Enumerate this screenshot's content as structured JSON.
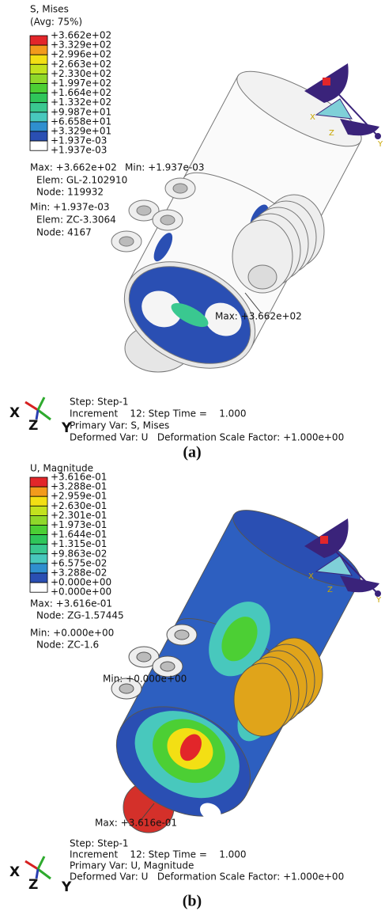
{
  "panels": [
    {
      "legend_title": "S, Mises",
      "legend_subtitle": "(Avg: 75%)",
      "legend_labels": [
        "+3.662e+02",
        "+3.329e+02",
        "+2.996e+02",
        "+2.663e+02",
        "+2.330e+02",
        "+1.997e+02",
        "+1.664e+02",
        "+1.332e+02",
        "+9.987e+01",
        "+6.658e+01",
        "+3.329e+01",
        "+1.937e-03"
      ],
      "legend_last_label": "+1.937e-03",
      "legend_colors": [
        "#e2262a",
        "#f29b1c",
        "#f3df14",
        "#c3e21e",
        "#8fd82a",
        "#4ccf34",
        "#2fc65a",
        "#3ac890",
        "#48c8bd",
        "#2f8fcf",
        "#2a4fb3",
        "#ffffff"
      ],
      "info": [
        "Max: +3.662e+02",
        "Elem: GL-2.102910",
        "Node: 119932",
        "Min: +1.937e-03",
        "Elem: ZC-3.3064",
        "Node: 4167"
      ],
      "model_labels": [
        "Min: +1.937e-03",
        "Max: +3.662e+02"
      ],
      "orientation_labels": [
        "X",
        "Z",
        "Y"
      ],
      "triad_labels": [
        "X",
        "Z",
        "Y"
      ],
      "step_info": [
        "Step: Step-1",
        "Increment    12: Step Time =    1.000",
        "Primary Var: S, Mises",
        "Deformed Var: U   Deformation Scale Factor: +1.000e+00"
      ],
      "caption": "(a)"
    },
    {
      "legend_title": "U, Magnitude",
      "legend_labels": [
        "+3.616e-01",
        "+3.288e-01",
        "+2.959e-01",
        "+2.630e-01",
        "+2.301e-01",
        "+1.973e-01",
        "+1.644e-01",
        "+1.315e-01",
        "+9.863e-02",
        "+6.575e-02",
        "+3.288e-02",
        "+0.000e+00"
      ],
      "legend_last_label": "+0.000e+00",
      "legend_colors": [
        "#e2262a",
        "#f29b1c",
        "#f3df14",
        "#c3e21e",
        "#8fd82a",
        "#4ccf34",
        "#2fc65a",
        "#3ac890",
        "#48c8bd",
        "#2f8fcf",
        "#2a4fb3",
        "#ffffff"
      ],
      "info": [
        "Max: +3.616e-01",
        "Node: ZG-1.57445",
        "Min: +0.000e+00",
        "Node: ZC-1.6"
      ],
      "model_labels": [
        "Min: +0.000e+00",
        "Max: +3.616e-01"
      ],
      "orientation_labels": [
        "X",
        "Z",
        "Y"
      ],
      "triad_labels": [
        "X",
        "Z",
        "Y"
      ],
      "step_info": [
        "Step: Step-1",
        "Increment    12: Step Time =    1.000",
        "Primary Var: U, Magnitude",
        "Deformed Var: U   Deformation Scale Factor: +1.000e+00"
      ],
      "caption": "(b)"
    }
  ]
}
